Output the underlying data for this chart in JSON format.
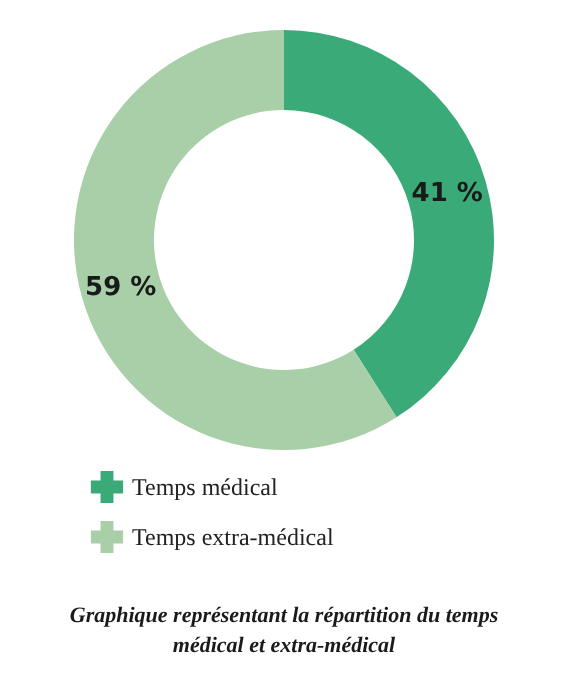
{
  "chart_data": {
    "type": "donut",
    "categories": [
      "Temps médical",
      "Temps extra-médical"
    ],
    "values": [
      41,
      59
    ],
    "colors": [
      "#3aaa78",
      "#a8cfa8"
    ],
    "value_labels": [
      "41 %",
      "59 %"
    ],
    "legend": "bottom left",
    "annotations": [
      "Graphique représentant la répartition du temps médical et extra-médical"
    ]
  }
}
